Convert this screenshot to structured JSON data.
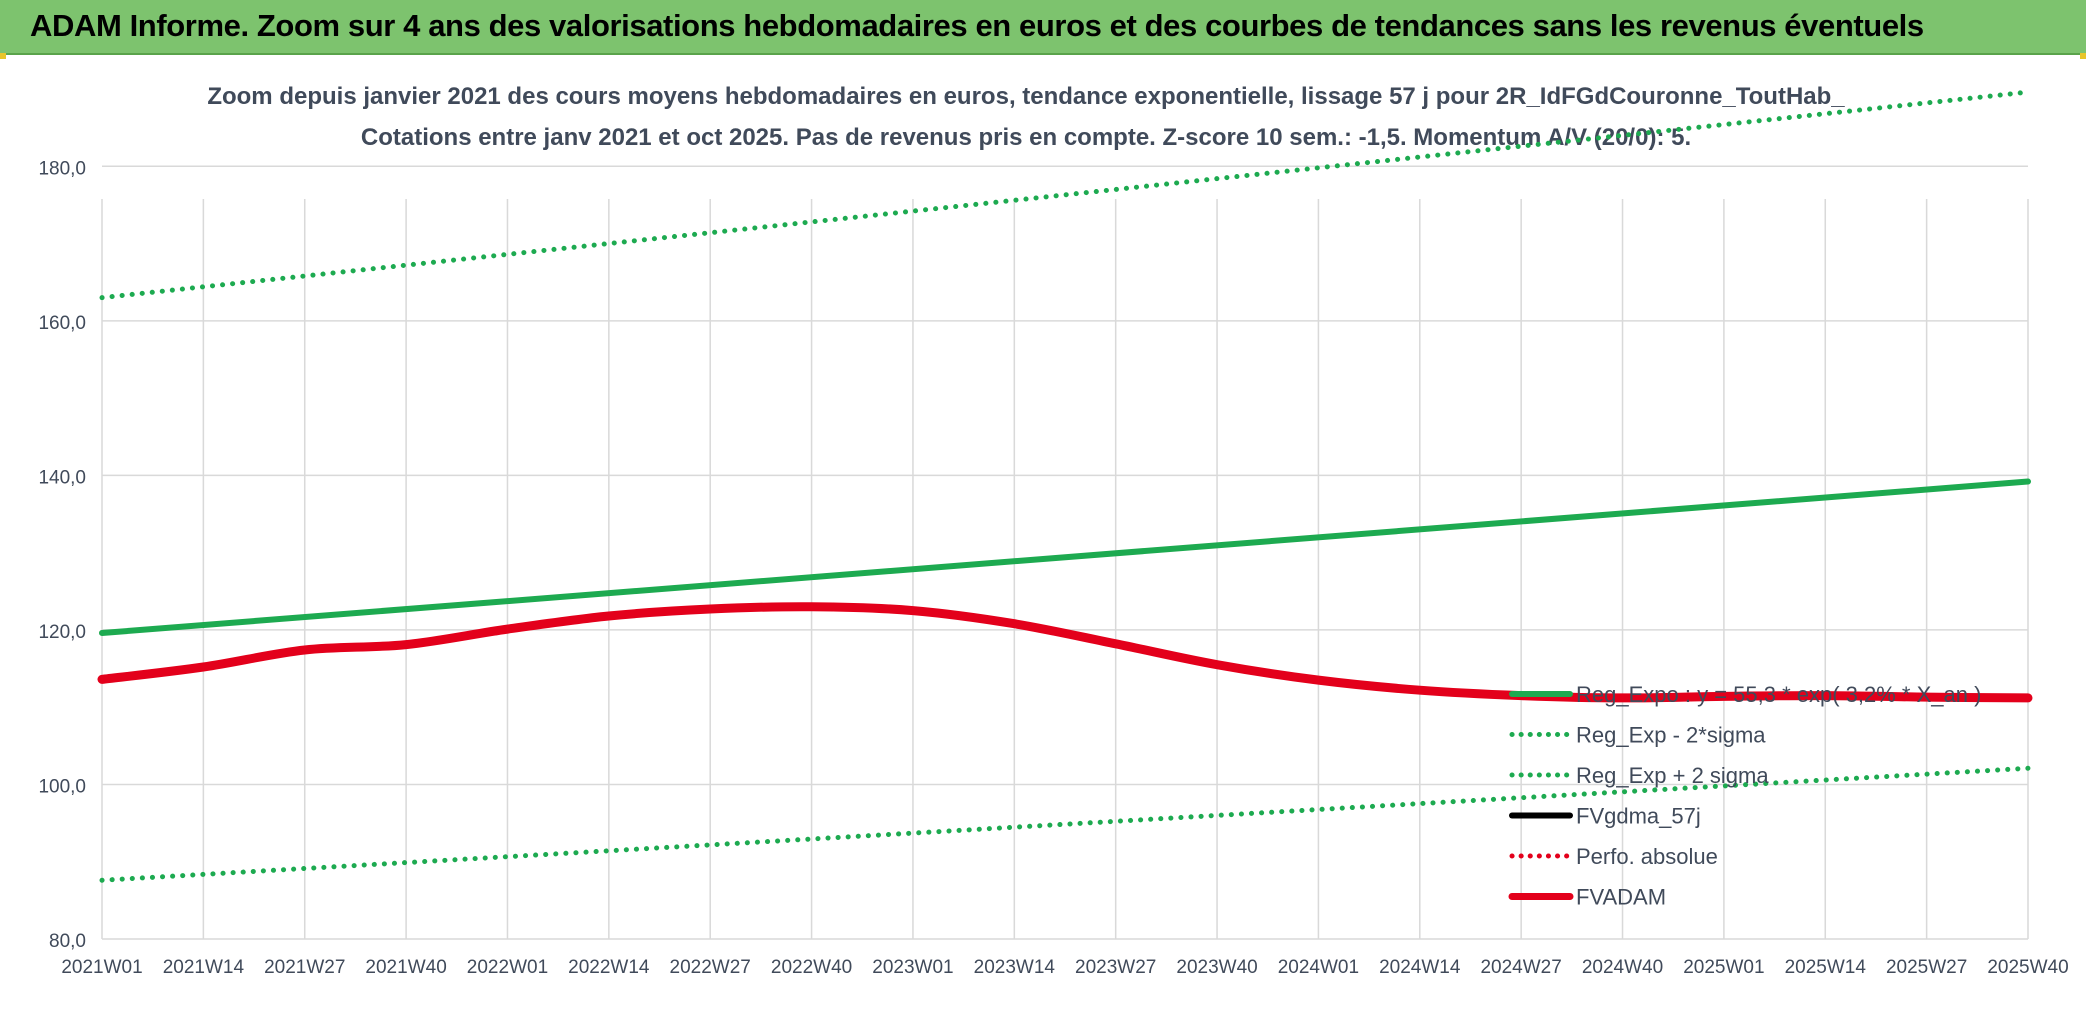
{
  "banner": {
    "title": "ADAM Informe. Zoom sur 4 ans des valorisations hebdomadaires en euros et des courbes de tendances sans les revenus éventuels"
  },
  "chart_data": {
    "type": "line",
    "title": "Zoom depuis janvier 2021 des cours moyens hebdomadaires en euros, tendance exponentielle, lissage 57 j pour 2R_IdFGdCouronne_ToutHab_",
    "subtitle": "Cotations entre janv 2021 et oct 2025. Pas de revenus pris en compte. Z-score 10 sem.: -1,5. Momentum A/V (20/0): 5.",
    "xlabel": "",
    "ylabel": "",
    "ylim": [
      80,
      190
    ],
    "yticks": [
      "80,0",
      "100,0",
      "120,0",
      "140,0",
      "160,0",
      "180,0"
    ],
    "ytick_values": [
      80,
      100,
      120,
      140,
      160,
      180
    ],
    "x_tick_labels": [
      "2021W01",
      "2021W14",
      "2021W27",
      "2021W40",
      "2022W01",
      "2022W14",
      "2022W27",
      "2022W40",
      "2023W01",
      "2023W14",
      "2023W27",
      "2023W40",
      "2024W01",
      "2024W14",
      "2024W27",
      "2024W40",
      "2025W01",
      "2025W14",
      "2025W27",
      "2025W40"
    ],
    "grid": true,
    "legend_position": "right",
    "series": [
      {
        "name": "Reg_Expo : y = 55,3 * exp( 3,2% * X_an )",
        "color": "#1daa50",
        "style": "solid",
        "x": [
          "2021W01",
          "2025W40"
        ],
        "values": [
          119.6,
          139.2
        ]
      },
      {
        "name": "Reg_Exp - 2*sigma",
        "color": "#1daa50",
        "style": "dotted",
        "x": [
          "2021W01",
          "2025W40"
        ],
        "values": [
          87.6,
          102.1
        ]
      },
      {
        "name": "Reg_Exp + 2 sigma",
        "color": "#1daa50",
        "style": "dotted",
        "x": [
          "2021W01",
          "2025W40"
        ],
        "values": [
          163.0,
          189.6
        ]
      },
      {
        "name": "FVgdma_57j",
        "color": "#000000",
        "style": "solid",
        "x": [
          "2021W01",
          "2021W14",
          "2021W27",
          "2021W40",
          "2022W01",
          "2022W14",
          "2022W27",
          "2022W40",
          "2023W01",
          "2023W14",
          "2023W27",
          "2023W40",
          "2024W01",
          "2024W14",
          "2024W27",
          "2024W40",
          "2025W01",
          "2025W14",
          "2025W27",
          "2025W40"
        ],
        "values": [
          113.6,
          115.2,
          117.4,
          118.3,
          120.2,
          121.9,
          122.8,
          123.1,
          122.6,
          120.9,
          118.3,
          115.6,
          113.6,
          112.3,
          111.6,
          111.3,
          111.5,
          111.6,
          111.4,
          111.3
        ]
      },
      {
        "name": "Perfo. absolue",
        "color": "#e3001b",
        "style": "dotted",
        "x": [],
        "values": []
      },
      {
        "name": "FVADAM",
        "color": "#e3001b",
        "style": "solid",
        "x": [
          "2021W01",
          "2021W14",
          "2021W27",
          "2021W40",
          "2022W01",
          "2022W14",
          "2022W27",
          "2022W40",
          "2023W01",
          "2023W14",
          "2023W27",
          "2023W40",
          "2024W01",
          "2024W14",
          "2024W27",
          "2024W40",
          "2025W01",
          "2025W14",
          "2025W27",
          "2025W40"
        ],
        "values": [
          113.6,
          115.2,
          117.4,
          118.1,
          120.1,
          121.8,
          122.7,
          123.0,
          122.5,
          120.8,
          118.2,
          115.5,
          113.5,
          112.2,
          111.5,
          111.2,
          111.4,
          111.5,
          111.3,
          111.2
        ]
      }
    ]
  }
}
